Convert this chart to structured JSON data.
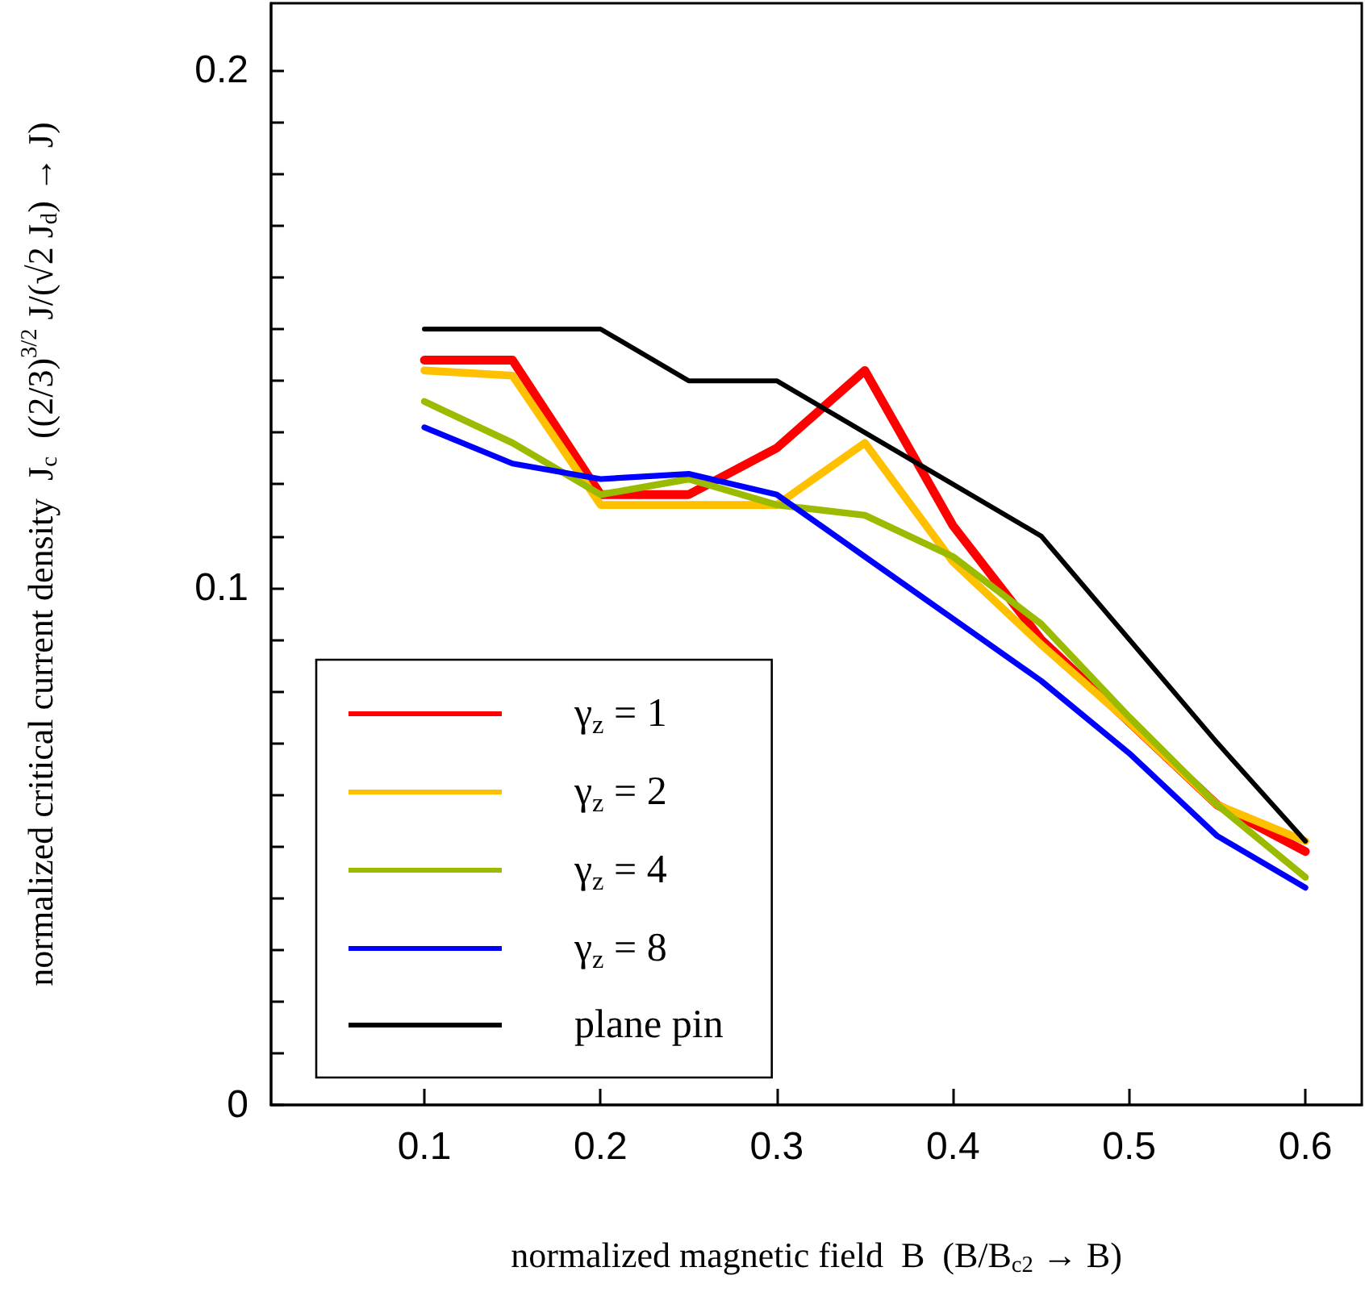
{
  "chart_data": {
    "type": "line",
    "xlabel": "normalized magnetic field  B  (B/B$_{c2}$ → B)",
    "ylabel": "normalized critical current density  J$_{c}$  ((2/3)$^{3/2}$ J/(√2 J$_{d}$) → J)",
    "x": [
      0.1,
      0.15,
      0.2,
      0.25,
      0.3,
      0.35,
      0.4,
      0.45,
      0.5,
      0.55,
      0.6
    ],
    "series": [
      {
        "name": "γ$_{z}$ = 1",
        "color": "#ff0000",
        "values": [
          0.144,
          0.144,
          0.118,
          0.118,
          0.127,
          0.142,
          0.112,
          0.09,
          0.074,
          0.058,
          0.049
        ]
      },
      {
        "name": "γ$_{z}$ = 2",
        "color": "#ffc000",
        "values": [
          0.142,
          0.141,
          0.116,
          0.116,
          0.116,
          0.128,
          0.105,
          0.089,
          0.074,
          0.058,
          0.051
        ]
      },
      {
        "name": "γ$_{z}$ = 4",
        "color": "#9bbb00",
        "values": [
          0.136,
          0.128,
          0.118,
          0.121,
          0.116,
          0.114,
          0.106,
          0.093,
          0.075,
          0.058,
          0.044
        ]
      },
      {
        "name": "γ$_{z}$ = 8",
        "color": "#0000ff",
        "values": [
          0.131,
          0.124,
          0.121,
          0.122,
          0.118,
          0.106,
          0.094,
          0.082,
          0.068,
          0.052,
          0.042
        ]
      },
      {
        "name": "plane pin",
        "color": "#000000",
        "values": [
          0.15,
          0.15,
          0.15,
          0.14,
          0.14,
          0.13,
          0.12,
          0.11,
          0.09,
          0.07,
          0.051
        ]
      }
    ],
    "xlim": [
      0.013,
      0.632
    ],
    "xticks": [
      0.1,
      0.2,
      0.3,
      0.4,
      0.5,
      0.6
    ],
    "ylim": [
      0,
      0.213
    ],
    "yticks": [
      0,
      {
        "value": 0.01,
        "label": null
      },
      {
        "value": 0.02,
        "label": null
      },
      {
        "value": 0.03,
        "label": null
      },
      {
        "value": 0.04,
        "label": null
      },
      {
        "value": 0.05,
        "label": null
      },
      {
        "value": 0.06,
        "label": null
      },
      {
        "value": 0.07,
        "label": null
      },
      {
        "value": 0.08,
        "label": null
      },
      {
        "value": 0.09,
        "label": null
      },
      0.1,
      {
        "value": 0.11,
        "label": null
      },
      {
        "value": 0.12,
        "label": null
      },
      {
        "value": 0.13,
        "label": null
      },
      {
        "value": 0.14,
        "label": null
      },
      {
        "value": 0.15,
        "label": null
      },
      {
        "value": 0.16,
        "label": null
      },
      {
        "value": 0.17,
        "label": null
      },
      {
        "value": 0.18,
        "label": null
      },
      {
        "value": 0.19,
        "label": null
      },
      0.2
    ],
    "grid": false,
    "legend": "bottom left",
    "marker": "none",
    "line_style": "solid"
  }
}
